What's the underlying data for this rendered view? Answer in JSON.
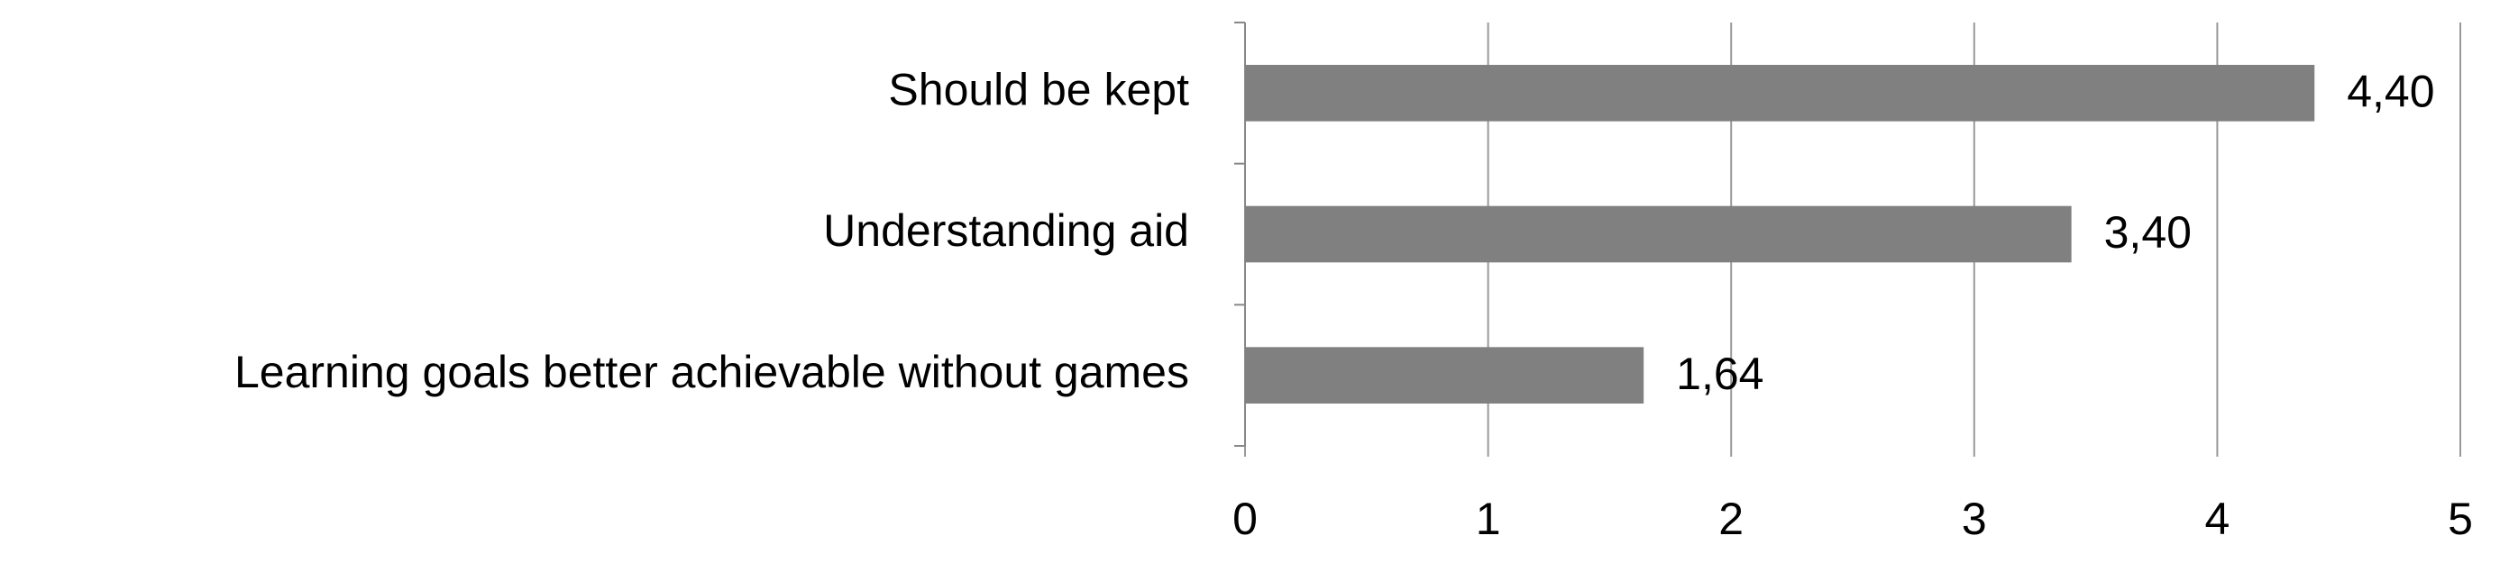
{
  "chart_data": {
    "type": "bar",
    "orientation": "horizontal",
    "categories": [
      "Should be kept",
      "Understanding aid",
      "Learning goals better achievable without games"
    ],
    "values": [
      4.4,
      3.4,
      1.64
    ],
    "value_labels": [
      "4,40",
      "3,40",
      "1,64"
    ],
    "color": "#808080",
    "xlim": [
      0,
      5
    ],
    "xticks": [
      0,
      1,
      2,
      3,
      4,
      5
    ],
    "grid": true
  }
}
